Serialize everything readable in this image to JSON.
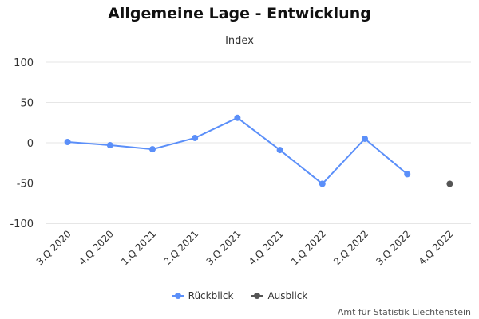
{
  "chart_data": {
    "type": "line",
    "title": "Allgemeine Lage - Entwicklung",
    "subtitle": "Index",
    "xlabel": "",
    "ylabel": "",
    "categories": [
      "3.Q 2020",
      "4.Q 2020",
      "1.Q 2021",
      "2.Q 2021",
      "3.Q 2021",
      "4.Q 2021",
      "1.Q 2022",
      "2.Q 2022",
      "3.Q 2022",
      "4.Q 2022"
    ],
    "yticks": [
      100,
      50,
      0,
      -50,
      -100
    ],
    "ylim": [
      -100,
      100
    ],
    "grid": true,
    "legend_position": "bottom",
    "series": [
      {
        "name": "Rückblick",
        "color": "#5b8ff9",
        "values": [
          1,
          -3,
          -8,
          6,
          31,
          -9,
          -51,
          5,
          -39,
          null
        ]
      },
      {
        "name": "Ausblick",
        "color": "#555555",
        "values": [
          null,
          null,
          null,
          null,
          null,
          null,
          null,
          null,
          null,
          -51
        ]
      }
    ]
  },
  "credit": "Amt für Statistik Liechtenstein"
}
